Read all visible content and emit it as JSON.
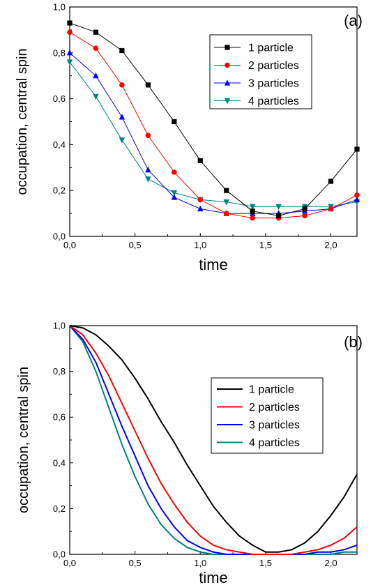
{
  "chart_data": [
    {
      "type": "line",
      "panel_label": "(a)",
      "xlabel": "time",
      "ylabel": "occupation, central spin",
      "xlim": [
        0,
        2.2
      ],
      "ylim": [
        0,
        1.0
      ],
      "x_ticks": [
        "0,0",
        "0,5",
        "1,0",
        "1,5",
        "2,0"
      ],
      "y_ticks": [
        "0,0",
        "0,2",
        "0,4",
        "0,6",
        "0,8",
        "1,0"
      ],
      "legend_position": "top-right",
      "grid": false,
      "markers": true,
      "x": [
        0.0,
        0.2,
        0.4,
        0.6,
        0.8,
        1.0,
        1.2,
        1.4,
        1.6,
        1.8,
        2.0,
        2.2
      ],
      "series": [
        {
          "name": "1 particle",
          "color": "#000000",
          "marker": "square",
          "values": [
            0.93,
            0.89,
            0.81,
            0.66,
            0.5,
            0.33,
            0.2,
            0.11,
            0.09,
            0.12,
            0.24,
            0.38
          ]
        },
        {
          "name": "2 particles",
          "color": "#ff0000",
          "marker": "circle",
          "values": [
            0.89,
            0.82,
            0.66,
            0.44,
            0.28,
            0.16,
            0.1,
            0.08,
            0.08,
            0.09,
            0.12,
            0.18
          ]
        },
        {
          "name": "3 particles",
          "color": "#0000ff",
          "marker": "triangle-up",
          "values": [
            0.8,
            0.7,
            0.52,
            0.29,
            0.17,
            0.12,
            0.1,
            0.1,
            0.1,
            0.11,
            0.12,
            0.16
          ]
        },
        {
          "name": "4 particles",
          "color": "#008080",
          "marker": "triangle-down",
          "values": [
            0.76,
            0.61,
            0.42,
            0.25,
            0.19,
            0.16,
            0.15,
            0.13,
            0.13,
            0.13,
            0.13,
            0.15
          ]
        }
      ]
    },
    {
      "type": "line",
      "panel_label": "(b)",
      "xlabel": "time",
      "ylabel": "occupation, central spin",
      "xlim": [
        0,
        2.2
      ],
      "ylim": [
        0,
        1.0
      ],
      "x_ticks": [
        "0,0",
        "0,5",
        "1,0",
        "1,5",
        "2,0"
      ],
      "y_ticks": [
        "0,0",
        "0,2",
        "0,4",
        "0,6",
        "0,8",
        "1,0"
      ],
      "legend_position": "middle-right",
      "grid": false,
      "markers": false,
      "x": [
        0.0,
        0.1,
        0.2,
        0.3,
        0.4,
        0.5,
        0.6,
        0.7,
        0.8,
        0.9,
        1.0,
        1.1,
        1.2,
        1.3,
        1.4,
        1.5,
        1.6,
        1.7,
        1.8,
        1.9,
        2.0,
        2.1,
        2.2
      ],
      "series": [
        {
          "name": "1 particle",
          "color": "#000000",
          "values": [
            1.0,
            0.99,
            0.96,
            0.91,
            0.85,
            0.77,
            0.68,
            0.58,
            0.49,
            0.39,
            0.3,
            0.21,
            0.14,
            0.08,
            0.04,
            0.01,
            0.01,
            0.02,
            0.05,
            0.1,
            0.17,
            0.25,
            0.35
          ]
        },
        {
          "name": "2 particles",
          "color": "#ff0000",
          "values": [
            1.0,
            0.96,
            0.88,
            0.78,
            0.66,
            0.54,
            0.42,
            0.31,
            0.22,
            0.14,
            0.08,
            0.04,
            0.02,
            0.01,
            0.0,
            0.0,
            0.0,
            0.0,
            0.01,
            0.02,
            0.04,
            0.07,
            0.12
          ]
        },
        {
          "name": "3 particles",
          "color": "#0000ff",
          "values": [
            1.0,
            0.94,
            0.84,
            0.7,
            0.56,
            0.43,
            0.3,
            0.2,
            0.12,
            0.06,
            0.03,
            0.01,
            0.0,
            0.0,
            0.0,
            0.0,
            0.0,
            0.0,
            0.0,
            0.01,
            0.01,
            0.02,
            0.04
          ]
        },
        {
          "name": "4 particles",
          "color": "#008080",
          "values": [
            1.0,
            0.93,
            0.8,
            0.64,
            0.48,
            0.34,
            0.22,
            0.13,
            0.07,
            0.03,
            0.01,
            0.0,
            0.0,
            0.0,
            0.0,
            0.0,
            0.0,
            0.0,
            0.0,
            0.0,
            0.0,
            0.01,
            0.01
          ]
        }
      ]
    }
  ]
}
